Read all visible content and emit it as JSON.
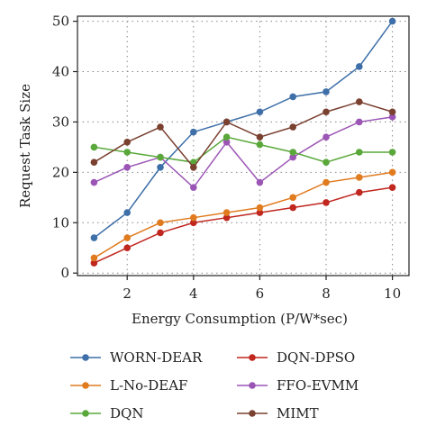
{
  "chart_data": {
    "type": "line",
    "title": "",
    "xlabel": "Energy Consumption (P/W*sec)",
    "ylabel": "Request Task Size",
    "x": [
      1,
      2,
      3,
      4,
      5,
      6,
      7,
      8,
      9,
      10
    ],
    "xlim": [
      0.5,
      10.5
    ],
    "ylim": [
      -0.5,
      51
    ],
    "x_ticks": [
      "2",
      "4",
      "6",
      "8",
      "10"
    ],
    "y_ticks": [
      "0",
      "10",
      "20",
      "30",
      "40",
      "50"
    ],
    "grid": "dotted",
    "legend_position": "bottom",
    "series": [
      {
        "name": "WORN-DEAR",
        "color": "#3e6fa8",
        "values": [
          7,
          12,
          21,
          28,
          30,
          32,
          35,
          36,
          41,
          50
        ]
      },
      {
        "name": "DQN-DPSO",
        "color": "#c0271f",
        "values": [
          2,
          5,
          8,
          10,
          11,
          12,
          13,
          14,
          16,
          17
        ]
      },
      {
        "name": "L-No-DEAF",
        "color": "#e07b1f",
        "values": [
          3,
          7,
          10,
          11,
          12,
          13,
          15,
          18,
          19,
          20
        ]
      },
      {
        "name": "FFO-EVMM",
        "color": "#9b55b5",
        "values": [
          18,
          21,
          23,
          17,
          26,
          18,
          23,
          27,
          30,
          31
        ]
      },
      {
        "name": "DQN",
        "color": "#5aa83a",
        "values": [
          25,
          24,
          23,
          22,
          27,
          25.5,
          24,
          22,
          24,
          24
        ]
      },
      {
        "name": "MIMT",
        "color": "#7a4030",
        "values": [
          22,
          26,
          29,
          21,
          30,
          27,
          29,
          32,
          34,
          32
        ]
      }
    ]
  }
}
